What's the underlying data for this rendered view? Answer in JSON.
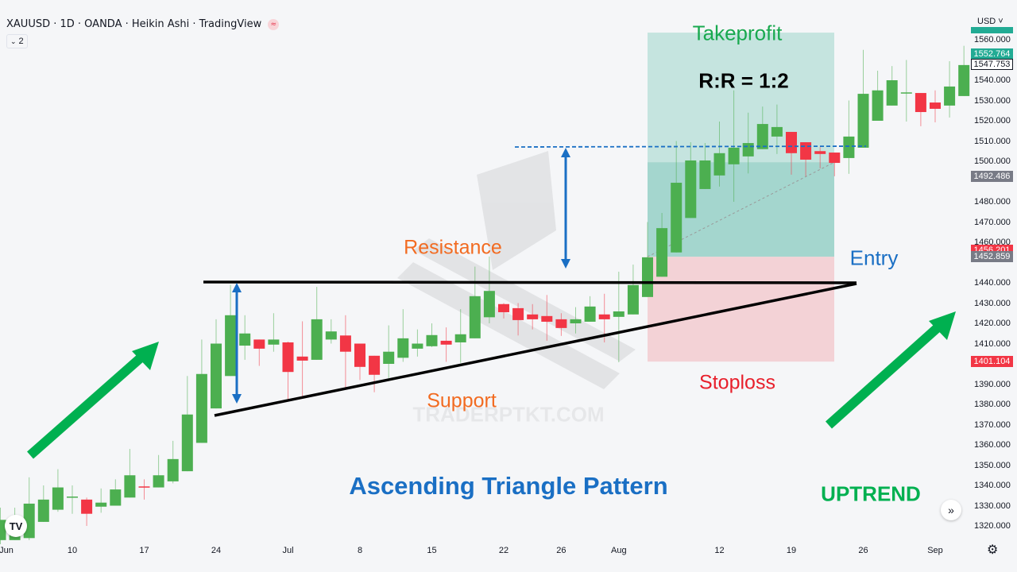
{
  "header": {
    "symbol_line": "XAUUSD · 1D · OANDA · Heikin Ashi · TradingView",
    "collapse_count": "2",
    "currency": "USD"
  },
  "colors": {
    "up": "#4caf50",
    "down": "#f23645",
    "tp_zone": "#c5e4df",
    "tp_zone_dark": "#a4d6ce",
    "sl_zone": "#f3d2d6",
    "annotation_blue": "#1a6fc4",
    "arrow_green": "#00b050",
    "orange": "#f26b21"
  },
  "annotations": {
    "takeprofit": "Takeprofit",
    "rr": "R:R = 1:2",
    "resistance": "Resistance",
    "support": "Support",
    "stoploss": "Stoploss",
    "entry": "Entry",
    "title": "Ascending Triangle Pattern",
    "trend": "UPTREND",
    "watermark": "TRADERPTKT.COM"
  },
  "chart_data": {
    "type": "candlestick",
    "style": "Heikin Ashi",
    "ylim": [
      1315,
      1570
    ],
    "y_ticks": [
      "1560.000",
      "1540.000",
      "1530.000",
      "1520.000",
      "1510.000",
      "1500.000",
      "1480.000",
      "1470.000",
      "1460.000",
      "1440.000",
      "1430.000",
      "1420.000",
      "1410.000",
      "1390.000",
      "1380.000",
      "1370.000",
      "1360.000",
      "1350.000",
      "1340.000",
      "1330.000",
      "1320.000"
    ],
    "price_tags": [
      {
        "label": "1552.764",
        "price": 1552.764,
        "kind": "last-up"
      },
      {
        "label": "1547.753",
        "price": 1547.753,
        "kind": "outline"
      },
      {
        "label": "1492.486",
        "price": 1492.486,
        "kind": "gray"
      },
      {
        "label": "1456.201",
        "price": 1456.201,
        "kind": "red"
      },
      {
        "label": "1452.859",
        "price": 1452.859,
        "kind": "gray"
      },
      {
        "label": "1401.104",
        "price": 1401.104,
        "kind": "red"
      }
    ],
    "x_labels": [
      {
        "label": "Jun",
        "index": 0
      },
      {
        "label": "10",
        "index": 5
      },
      {
        "label": "17",
        "index": 10
      },
      {
        "label": "24",
        "index": 15
      },
      {
        "label": "Jul",
        "index": 20
      },
      {
        "label": "8",
        "index": 25
      },
      {
        "label": "15",
        "index": 30
      },
      {
        "label": "22",
        "index": 35
      },
      {
        "label": "26",
        "index": 39
      },
      {
        "label": "Aug",
        "index": 43
      },
      {
        "label": "12",
        "index": 50
      },
      {
        "label": "19",
        "index": 55
      },
      {
        "label": "26",
        "index": 60
      },
      {
        "label": "Sep",
        "index": 65
      }
    ],
    "candles_ochl_note": "each candle [open, close, high, low]",
    "candles": [
      [
        1313,
        1323,
        1329,
        1311
      ],
      [
        1313,
        1317,
        1329,
        1313
      ],
      [
        1314,
        1331,
        1344,
        1313
      ],
      [
        1322,
        1333,
        1340,
        1322
      ],
      [
        1328,
        1339,
        1348,
        1327
      ],
      [
        1334,
        1334.5,
        1340,
        1326
      ],
      [
        1333,
        1326,
        1334,
        1320
      ],
      [
        1329.5,
        1331.5,
        1338.5,
        1326.5
      ],
      [
        1330,
        1338,
        1343,
        1330
      ],
      [
        1334,
        1345,
        1358,
        1334
      ],
      [
        1339.5,
        1339,
        1343,
        1333
      ],
      [
        1339,
        1345,
        1355,
        1339
      ],
      [
        1342,
        1353,
        1362,
        1341
      ],
      [
        1347,
        1375,
        1394,
        1347
      ],
      [
        1361,
        1395,
        1412,
        1361
      ],
      [
        1378,
        1410,
        1422,
        1378
      ],
      [
        1394,
        1424,
        1439,
        1394
      ],
      [
        1409,
        1415,
        1424,
        1402
      ],
      [
        1412,
        1407.5,
        1412,
        1399
      ],
      [
        1409.5,
        1412,
        1425,
        1406
      ],
      [
        1410.6,
        1396,
        1411,
        1382
      ],
      [
        1403.6,
        1401.6,
        1421,
        1384
      ],
      [
        1402,
        1422,
        1438,
        1402
      ],
      [
        1412,
        1416,
        1422,
        1410
      ],
      [
        1414,
        1406,
        1424,
        1387.5
      ],
      [
        1410,
        1398.5,
        1410,
        1392
      ],
      [
        1404,
        1394.6,
        1404,
        1386
      ],
      [
        1400,
        1406,
        1419,
        1393
      ],
      [
        1403,
        1412.6,
        1427,
        1401
      ],
      [
        1407.5,
        1410,
        1417,
        1403.6
      ],
      [
        1408.7,
        1414.2,
        1420,
        1408.3
      ],
      [
        1411.4,
        1409.5,
        1418,
        1401
      ],
      [
        1410.6,
        1414.6,
        1427,
        1400.5
      ],
      [
        1412.6,
        1433.4,
        1448,
        1412.6
      ],
      [
        1423,
        1436,
        1453,
        1420
      ],
      [
        1429.5,
        1425.5,
        1430,
        1422.4
      ],
      [
        1427.5,
        1421.6,
        1430,
        1414
      ],
      [
        1424.4,
        1422,
        1429.5,
        1417
      ],
      [
        1423.6,
        1420.8,
        1434,
        1411.4
      ],
      [
        1422,
        1417.7,
        1425,
        1413.8
      ],
      [
        1420,
        1422,
        1428,
        1415
      ],
      [
        1420.8,
        1428.3,
        1433.4,
        1420.8
      ],
      [
        1424.4,
        1422,
        1434.6,
        1410.6
      ],
      [
        1423.2,
        1425.9,
        1445.5,
        1400.8
      ],
      [
        1424.4,
        1438.9,
        1449,
        1424.4
      ],
      [
        1433,
        1452.6,
        1470,
        1433
      ],
      [
        1443,
        1467,
        1474.5,
        1443
      ],
      [
        1455,
        1489.4,
        1510,
        1455
      ],
      [
        1472,
        1500.4,
        1509.4,
        1472
      ],
      [
        1486.3,
        1500.4,
        1509,
        1486.3
      ],
      [
        1493,
        1504,
        1519.6,
        1487.5
      ],
      [
        1498.5,
        1506.7,
        1535,
        1480
      ],
      [
        1502.4,
        1509,
        1524,
        1494
      ],
      [
        1506,
        1518.4,
        1527,
        1506
      ],
      [
        1512.2,
        1516.9,
        1528,
        1503.6
      ],
      [
        1514.5,
        1504,
        1514.5,
        1493.4
      ],
      [
        1509.4,
        1500.8,
        1509.4,
        1492.6
      ],
      [
        1505,
        1503.6,
        1507,
        1496.5
      ],
      [
        1504.3,
        1499.2,
        1504.3,
        1492.6
      ],
      [
        1501.6,
        1512.2,
        1530,
        1493.8
      ],
      [
        1506.7,
        1533.3,
        1555,
        1506.7
      ],
      [
        1520,
        1535,
        1544.7,
        1520
      ],
      [
        1527.5,
        1540,
        1547,
        1527.5
      ],
      [
        1533.7,
        1534,
        1550,
        1519.6
      ],
      [
        1533.7,
        1524.3,
        1533.7,
        1517.3
      ],
      [
        1529,
        1525.9,
        1535,
        1519.2
      ],
      [
        1527.5,
        1536.9,
        1549.4,
        1521.6
      ],
      [
        1532.2,
        1547.5,
        1557,
        1532.2
      ]
    ],
    "position": {
      "entry": 1452.859,
      "takeprofit": 1563.5,
      "stoploss": 1401.104,
      "current": 1499.5
    }
  }
}
